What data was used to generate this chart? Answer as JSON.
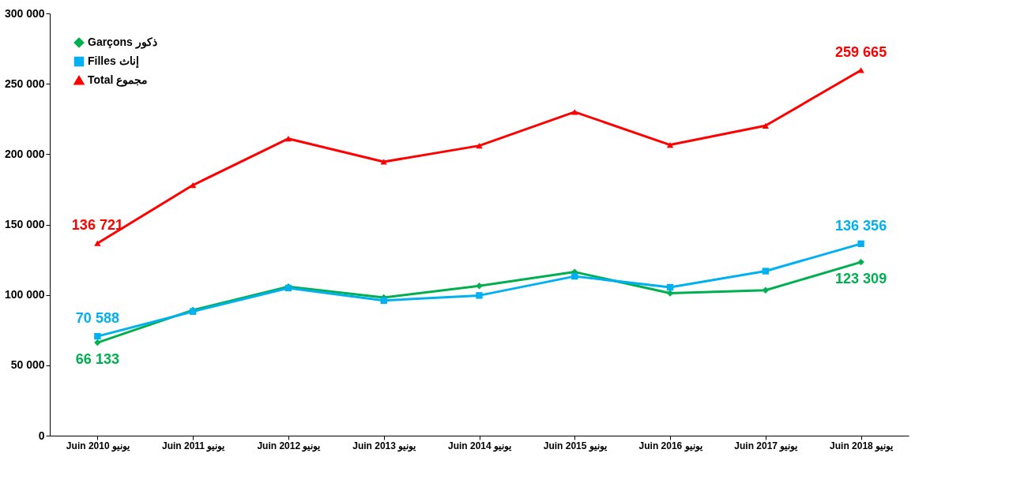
{
  "chart_data": {
    "type": "line",
    "categories": [
      "Juin 2010 يونيو",
      "Juin 2011 يونيو",
      "Juin 2012 يونيو",
      "Juin 2013 يونيو",
      "Juin 2014 يونيو",
      "Juin 2015 يونيو",
      "Juin 2016 يونيو",
      "Juin 2017 يونيو",
      "Juin 2018 يونيو"
    ],
    "series": [
      {
        "name": "Garçons ذكور",
        "color": "#00b050",
        "marker": "diamond",
        "values": [
          66133,
          89200,
          105900,
          98100,
          106400,
          116300,
          101200,
          103300,
          123309
        ],
        "value_labels": [
          "66 133",
          null,
          null,
          null,
          null,
          null,
          null,
          null,
          "123 309"
        ]
      },
      {
        "name": "Filles إناث",
        "color": "#00b0f0",
        "marker": "square",
        "values": [
          70588,
          88200,
          104900,
          96000,
          99600,
          113200,
          105400,
          116900,
          136356
        ],
        "value_labels": [
          "70 588",
          null,
          null,
          null,
          null,
          null,
          null,
          null,
          "136 356"
        ]
      },
      {
        "name": "Total مجموع",
        "color": "#ff0000",
        "marker": "triangle",
        "values": [
          136721,
          178000,
          211000,
          194600,
          206000,
          230000,
          206600,
          220200,
          259665
        ],
        "value_labels": [
          "136 721",
          null,
          null,
          null,
          null,
          null,
          null,
          null,
          "259 665"
        ]
      }
    ],
    "ylim": [
      0,
      300000
    ],
    "yticks": [
      {
        "value": 0,
        "label": "0"
      },
      {
        "value": 50000,
        "label": "50 000"
      },
      {
        "value": 100000,
        "label": "100 000"
      },
      {
        "value": 150000,
        "label": "150 000"
      },
      {
        "value": 200000,
        "label": "200 000"
      },
      {
        "value": 250000,
        "label": "250 000"
      },
      {
        "value": 300000,
        "label": "300 000"
      }
    ],
    "grid": false,
    "legend": "top left",
    "line_style": "solid"
  }
}
